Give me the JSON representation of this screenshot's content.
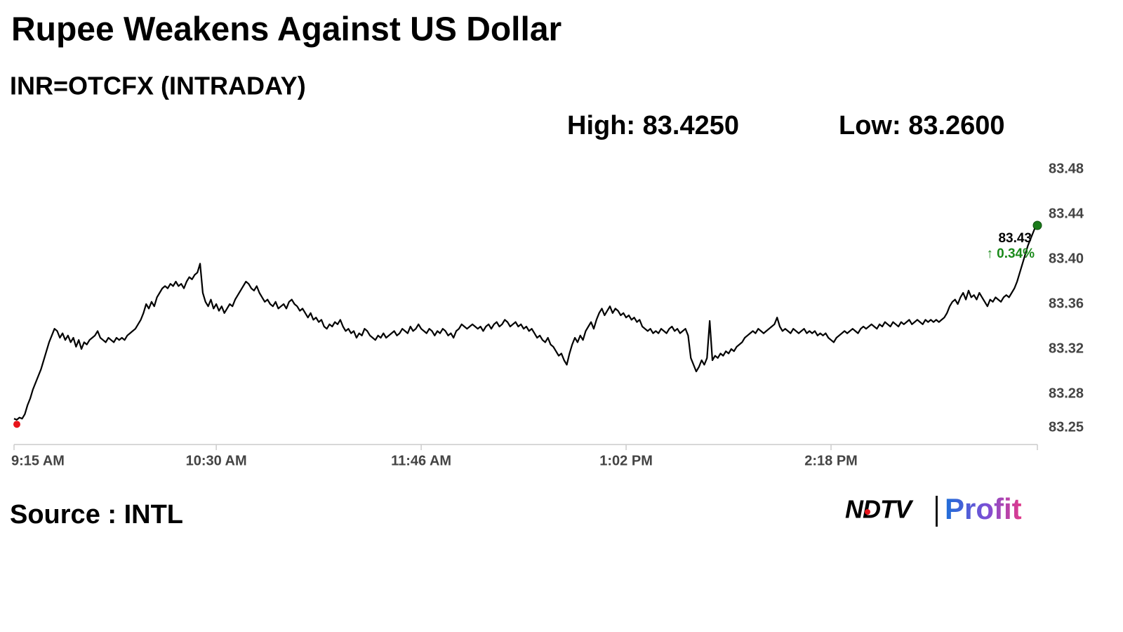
{
  "chart_data": {
    "type": "line",
    "title": "Rupee Weakens Against US Dollar",
    "subtitle": "INR=OTCFX (INTRADAY)",
    "high_label": "High: 83.4250",
    "low_label": "Low: 83.2600",
    "change_label": "↑ 0.34%",
    "source": "Source : INTL",
    "logo": {
      "left": "NDTV",
      "right": "Profit"
    },
    "color": "#000000",
    "start_color": "#e8141b",
    "end_color": "#1a7a1a",
    "change_color": "#1a8a1a",
    "grid": false,
    "ylim": [
      83.235,
      83.49
    ],
    "yticks": [
      83.25,
      83.28,
      83.32,
      83.36,
      {
        "value": 83.4,
        "label": "83.40"
      },
      83.44,
      83.48
    ],
    "categories": [
      "9:15 AM",
      null,
      null,
      null,
      null,
      null,
      null,
      null,
      null,
      null,
      null,
      null,
      null,
      null,
      null,
      null,
      null,
      null,
      null,
      null,
      null,
      null,
      null,
      null,
      null,
      null,
      null,
      null,
      null,
      null,
      null,
      null,
      null,
      null,
      null,
      null,
      null,
      null,
      null,
      null,
      null,
      null,
      null,
      null,
      null,
      null,
      null,
      null,
      null,
      null,
      null,
      null,
      null,
      null,
      null,
      null,
      null,
      null,
      null,
      null,
      null,
      null,
      null,
      null,
      null,
      null,
      null,
      null,
      null,
      null,
      null,
      null,
      null,
      null,
      null,
      "10:30 AM",
      null,
      null,
      null,
      null,
      null,
      null,
      null,
      null,
      null,
      null,
      null,
      null,
      null,
      null,
      null,
      null,
      null,
      null,
      null,
      null,
      null,
      null,
      null,
      null,
      null,
      null,
      null,
      null,
      null,
      null,
      null,
      null,
      null,
      null,
      null,
      null,
      null,
      null,
      null,
      null,
      null,
      null,
      null,
      null,
      null,
      null,
      null,
      null,
      null,
      null,
      null,
      null,
      null,
      null,
      null,
      null,
      null,
      null,
      null,
      null,
      null,
      null,
      null,
      null,
      null,
      null,
      null,
      null,
      null,
      null,
      null,
      null,
      null,
      null,
      null,
      "11:46 AM",
      null,
      null,
      null,
      null,
      null,
      null,
      null,
      null,
      null,
      null,
      null,
      null,
      null,
      null,
      null,
      null,
      null,
      null,
      null,
      null,
      null,
      null,
      null,
      null,
      null,
      null,
      null,
      null,
      null,
      null,
      null,
      null,
      null,
      null,
      null,
      null,
      null,
      null,
      null,
      null,
      null,
      null,
      null,
      null,
      null,
      null,
      null,
      null,
      null,
      null,
      null,
      null,
      null,
      null,
      null,
      null,
      null,
      null,
      null,
      null,
      null,
      null,
      null,
      null,
      null,
      null,
      null,
      null,
      null,
      null,
      null,
      null,
      null,
      null,
      null,
      "1:02 PM",
      null,
      null,
      null,
      null,
      null,
      null,
      null,
      null,
      null,
      null,
      null,
      null,
      null,
      null,
      null,
      null,
      null,
      null,
      null,
      null,
      null,
      null,
      null,
      null,
      null,
      null,
      null,
      null,
      null,
      null,
      null,
      null,
      null,
      null,
      null,
      null,
      null,
      null,
      null,
      null,
      null,
      null,
      null,
      null,
      null,
      null,
      null,
      null,
      null,
      null,
      null,
      null,
      null,
      null,
      null,
      null,
      null,
      null,
      null,
      null,
      null,
      null,
      null,
      null,
      null,
      null,
      null,
      null,
      null,
      null,
      null,
      null,
      null,
      null,
      null,
      "2:18 PM",
      null,
      null,
      null,
      null,
      null,
      null,
      null,
      null,
      null,
      null,
      null,
      null,
      null,
      null,
      null,
      null,
      null,
      null,
      null,
      null,
      null,
      null,
      null,
      null,
      null,
      null,
      null,
      null,
      null,
      null,
      null,
      null,
      null,
      null,
      null,
      null,
      null,
      null,
      null,
      null,
      null,
      null,
      null,
      null,
      null,
      null,
      null,
      null,
      null,
      null,
      null,
      null,
      null,
      null,
      null,
      null,
      null,
      null,
      null,
      null,
      null,
      null,
      null,
      null,
      null,
      null,
      null,
      null,
      null,
      null,
      null,
      null,
      null,
      null,
      null,
      null
    ],
    "values": [
      83.258,
      83.257,
      83.259,
      83.258,
      83.262,
      83.27,
      83.276,
      83.284,
      83.29,
      83.296,
      83.302,
      83.31,
      83.318,
      83.326,
      83.332,
      83.338,
      83.336,
      83.33,
      83.334,
      83.328,
      83.332,
      83.326,
      83.33,
      83.322,
      83.328,
      83.32,
      83.326,
      83.324,
      83.328,
      83.33,
      83.332,
      83.336,
      83.33,
      83.328,
      83.326,
      83.33,
      83.328,
      83.326,
      83.33,
      83.328,
      83.33,
      83.328,
      83.332,
      83.334,
      83.336,
      83.338,
      83.342,
      83.346,
      83.352,
      83.36,
      83.356,
      83.362,
      83.358,
      83.366,
      83.37,
      83.374,
      83.376,
      83.374,
      83.378,
      83.376,
      83.38,
      83.376,
      83.378,
      83.374,
      83.38,
      83.384,
      83.382,
      83.386,
      83.388,
      83.396,
      83.37,
      83.362,
      83.358,
      83.364,
      83.356,
      83.36,
      83.354,
      83.358,
      83.352,
      83.356,
      83.36,
      83.358,
      83.364,
      83.368,
      83.372,
      83.376,
      83.38,
      83.378,
      83.374,
      83.372,
      83.376,
      83.37,
      83.366,
      83.362,
      83.364,
      83.36,
      83.358,
      83.362,
      83.356,
      83.358,
      83.36,
      83.356,
      83.362,
      83.364,
      83.36,
      83.358,
      83.354,
      83.356,
      83.352,
      83.348,
      83.352,
      83.346,
      83.348,
      83.344,
      83.346,
      83.34,
      83.338,
      83.342,
      83.34,
      83.344,
      83.342,
      83.346,
      83.34,
      83.336,
      83.338,
      83.334,
      83.336,
      83.33,
      83.334,
      83.332,
      83.338,
      83.336,
      83.332,
      83.33,
      83.328,
      83.332,
      83.33,
      83.334,
      83.33,
      83.332,
      83.334,
      83.336,
      83.332,
      83.334,
      83.338,
      83.336,
      83.334,
      83.34,
      83.336,
      83.338,
      83.342,
      83.338,
      83.336,
      83.334,
      83.338,
      83.336,
      83.332,
      83.336,
      83.334,
      83.338,
      83.336,
      83.332,
      83.334,
      83.33,
      83.336,
      83.338,
      83.342,
      83.34,
      83.338,
      83.34,
      83.342,
      83.34,
      83.338,
      83.34,
      83.336,
      83.34,
      83.342,
      83.338,
      83.342,
      83.344,
      83.34,
      83.342,
      83.346,
      83.344,
      83.34,
      83.342,
      83.344,
      83.34,
      83.342,
      83.338,
      83.34,
      83.336,
      83.338,
      83.334,
      83.33,
      83.332,
      83.328,
      83.326,
      83.33,
      83.324,
      83.322,
      83.318,
      83.314,
      83.316,
      83.31,
      83.306,
      83.316,
      83.324,
      83.33,
      83.326,
      83.332,
      83.328,
      83.336,
      83.34,
      83.344,
      83.338,
      83.346,
      83.352,
      83.356,
      83.35,
      83.354,
      83.358,
      83.352,
      83.356,
      83.354,
      83.35,
      83.352,
      83.348,
      83.35,
      83.346,
      83.348,
      83.344,
      83.346,
      83.34,
      83.338,
      83.336,
      83.338,
      83.334,
      83.336,
      83.334,
      83.338,
      83.336,
      83.334,
      83.338,
      83.34,
      83.336,
      83.338,
      83.334,
      83.336,
      83.338,
      83.332,
      83.312,
      83.306,
      83.3,
      83.304,
      83.31,
      83.306,
      83.312,
      83.345,
      83.31,
      83.314,
      83.312,
      83.316,
      83.314,
      83.318,
      83.316,
      83.32,
      83.318,
      83.322,
      83.324,
      83.326,
      83.33,
      83.332,
      83.334,
      83.336,
      83.334,
      83.338,
      83.336,
      83.334,
      83.336,
      83.338,
      83.34,
      83.342,
      83.348,
      83.34,
      83.336,
      83.338,
      83.336,
      83.334,
      83.338,
      83.336,
      83.334,
      83.336,
      83.338,
      83.334,
      83.336,
      83.334,
      83.336,
      83.332,
      83.334,
      83.332,
      83.334,
      83.33,
      83.328,
      83.326,
      83.33,
      83.332,
      83.334,
      83.336,
      83.334,
      83.336,
      83.338,
      83.336,
      83.334,
      83.338,
      83.34,
      83.338,
      83.34,
      83.342,
      83.34,
      83.338,
      83.342,
      83.34,
      83.344,
      83.342,
      83.34,
      83.344,
      83.342,
      83.34,
      83.344,
      83.342,
      83.344,
      83.346,
      83.342,
      83.344,
      83.346,
      83.344,
      83.342,
      83.346,
      83.344,
      83.346,
      83.344,
      83.346,
      83.344,
      83.346,
      83.348,
      83.352,
      83.358,
      83.362,
      83.364,
      83.36,
      83.366,
      83.37,
      83.364,
      83.372,
      83.366,
      83.368,
      83.364,
      83.37,
      83.366,
      83.362,
      83.358,
      83.364,
      83.362,
      83.366,
      83.364,
      83.362,
      83.366,
      83.368,
      83.366,
      83.37,
      83.374,
      83.38,
      83.388,
      83.396,
      83.404,
      83.412,
      83.418,
      83.424,
      83.43
    ]
  }
}
